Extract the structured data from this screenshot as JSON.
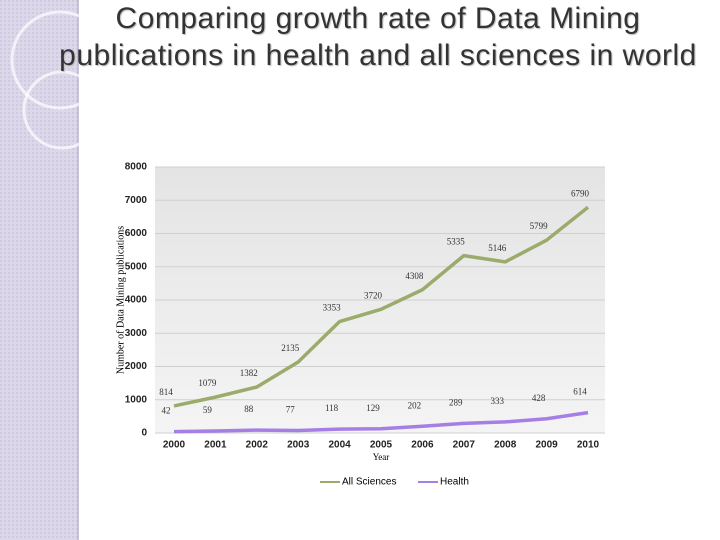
{
  "chart_data": {
    "type": "line",
    "title": "Comparing growth rate of Data Mining publications in health and all sciences in world",
    "x_label": "Year",
    "y_label": "Number of Data Mining publications",
    "categories": [
      "2000",
      "2001",
      "2002",
      "2003",
      "2004",
      "2005",
      "2006",
      "2007",
      "2008",
      "2009",
      "2010"
    ],
    "series": [
      {
        "name": "All Sciences",
        "color": "#9aab6c",
        "values": [
          814,
          1079,
          1382,
          2135,
          3353,
          3720,
          4308,
          5335,
          5146,
          5799,
          6790
        ]
      },
      {
        "name": "Health",
        "color": "#a67fe6",
        "values": [
          42,
          59,
          88,
          77,
          118,
          129,
          202,
          289,
          333,
          428,
          614
        ]
      }
    ],
    "ylim": [
      0,
      8000
    ],
    "yticks": [
      0,
      1000,
      2000,
      3000,
      4000,
      5000,
      6000,
      7000,
      8000
    ],
    "grid": true,
    "legend": "bottom"
  }
}
